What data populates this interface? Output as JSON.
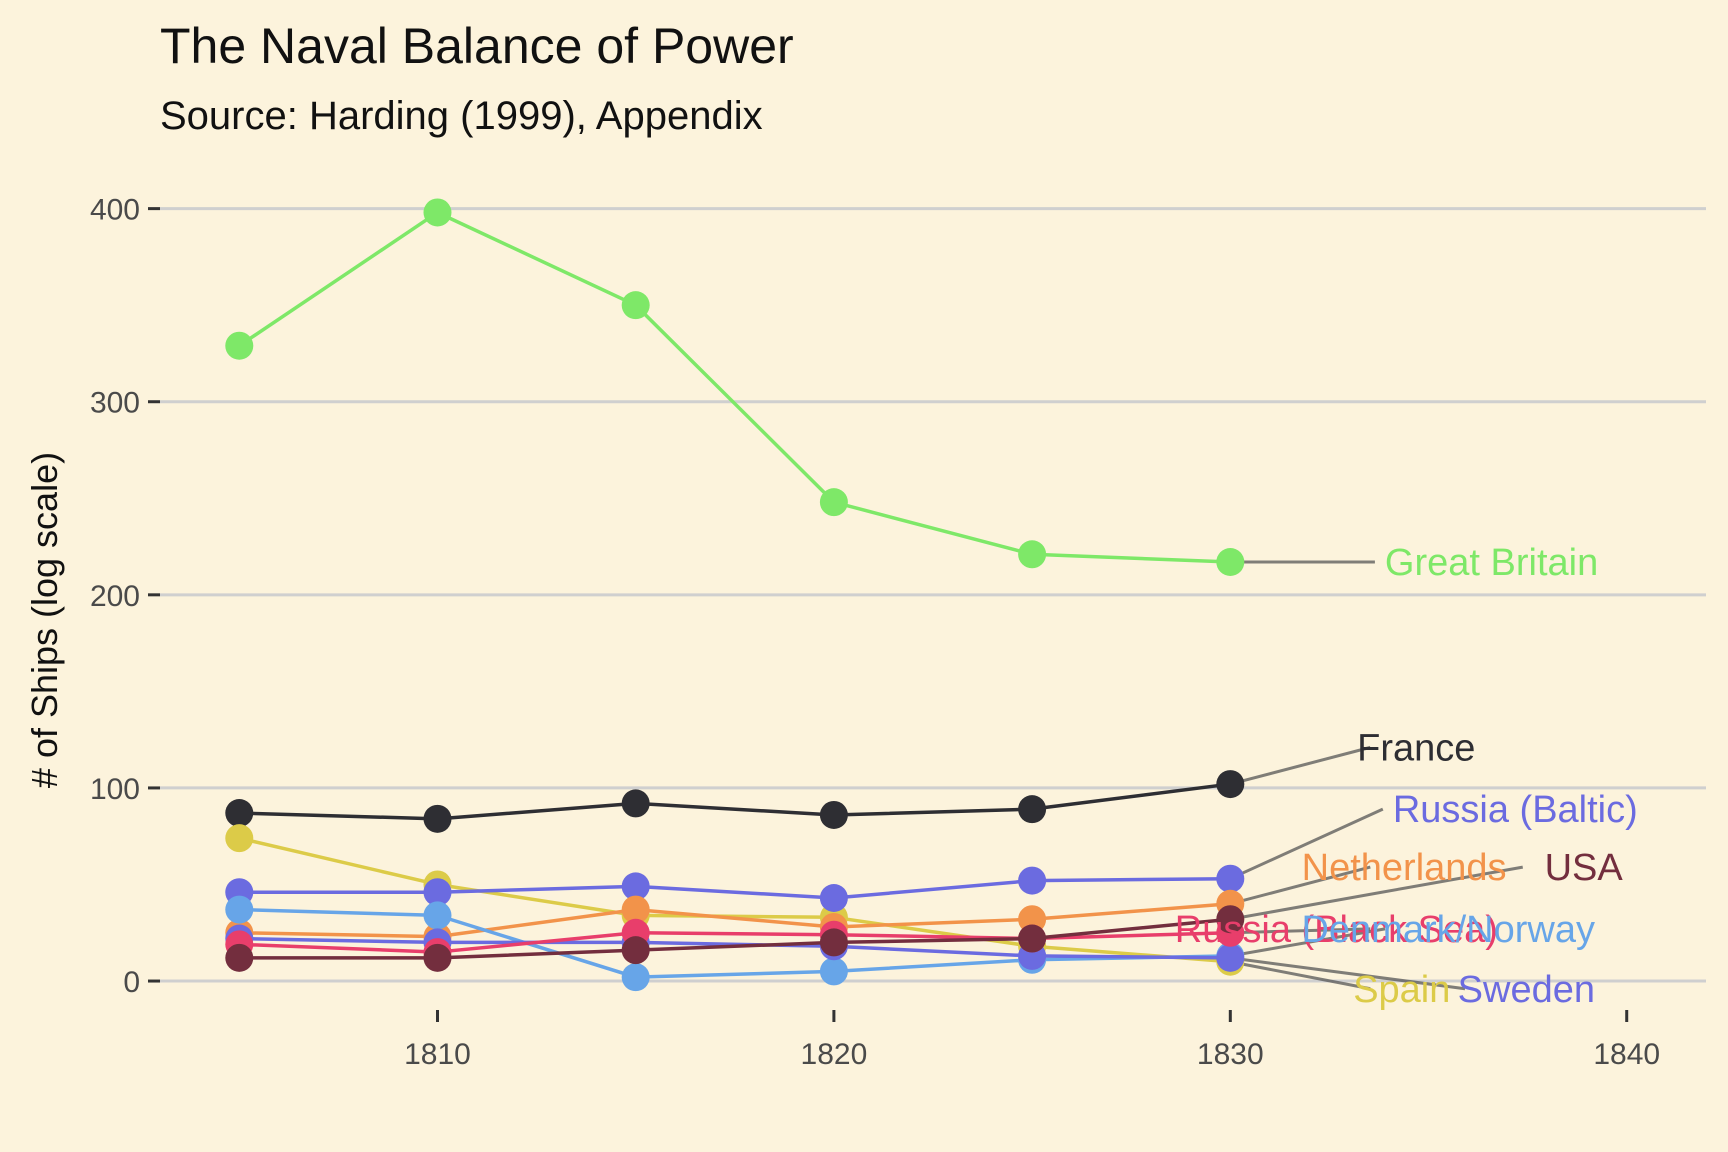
{
  "chart_data": {
    "type": "line",
    "title": "The Naval Balance of Power",
    "subtitle": "Source: Harding (1999), Appendix",
    "xlabel": "",
    "ylabel": "# of Ships (log scale)",
    "x": [
      1805,
      1810,
      1815,
      1820,
      1825,
      1830
    ],
    "xlim": [
      1803,
      1842
    ],
    "ylim": [
      -15,
      420
    ],
    "x_ticks": [
      1810,
      1820,
      1830,
      1840
    ],
    "y_ticks": [
      0,
      100,
      200,
      300,
      400
    ],
    "grid": "horizontal",
    "legend": "none (direct labels at right)",
    "series": [
      {
        "name": "Great Britain",
        "color": "#7ee868",
        "values": [
          329,
          398,
          350,
          248,
          221,
          217
        ]
      },
      {
        "name": "France",
        "color": "#2e2e33",
        "values": [
          87,
          84,
          92,
          86,
          89,
          102
        ]
      },
      {
        "name": "Spain",
        "color": "#dccb48",
        "values": [
          74,
          50,
          34,
          33,
          18,
          10
        ]
      },
      {
        "name": "Russia (Baltic)",
        "color": "#6b6be0",
        "values": [
          46,
          46,
          49,
          43,
          52,
          53
        ]
      },
      {
        "name": "Netherlands",
        "color": "#f2934a",
        "values": [
          25,
          23,
          37,
          28,
          32,
          40
        ]
      },
      {
        "name": "Denmark/Norway",
        "color": "#67a5e8",
        "values": [
          37,
          34,
          2,
          5,
          11,
          13
        ]
      },
      {
        "name": "Sweden",
        "color": "#6b6be0",
        "values": [
          22,
          20,
          20,
          18,
          13,
          12
        ]
      },
      {
        "name": "Russia (Black Sea)",
        "color": "#e83e6b",
        "values": [
          19,
          15,
          25,
          24,
          22,
          25
        ]
      },
      {
        "name": "USA",
        "color": "#732e3e",
        "values": [
          12,
          12,
          16,
          20,
          22,
          32
        ]
      }
    ],
    "direct_labels": [
      {
        "series": "Great Britain",
        "color": "#7ee868",
        "text_x": 1833.9,
        "text_y": 217,
        "anchor": "start"
      },
      {
        "series": "France",
        "color": "#2e2e33",
        "text_x": 1833.2,
        "text_y": 121,
        "anchor": "start"
      },
      {
        "series": "Russia (Baltic)",
        "color": "#6b6be0",
        "text_x": 1834.1,
        "text_y": 89,
        "anchor": "start"
      },
      {
        "series": "Netherlands",
        "color": "#f2934a",
        "text_x": 1831.8,
        "text_y": 59,
        "anchor": "start"
      },
      {
        "series": "USA",
        "color": "#732e3e",
        "text_x": 1839.9,
        "text_y": 59,
        "anchor": "end"
      },
      {
        "series": "Russia (Black Sea)",
        "color": "#e83e6b",
        "text_x": 1828.6,
        "text_y": 27,
        "anchor": "start"
      },
      {
        "series": "Denmark/Norway",
        "color": "#67a5e8",
        "text_x": 1839.2,
        "text_y": 27,
        "anchor": "end"
      },
      {
        "series": "Spain",
        "color": "#dccb48",
        "text_x": 1833.1,
        "text_y": -4,
        "anchor": "start"
      },
      {
        "series": "Sweden",
        "color": "#6b6be0",
        "text_x": 1839.2,
        "text_y": -4,
        "anchor": "end"
      }
    ]
  }
}
